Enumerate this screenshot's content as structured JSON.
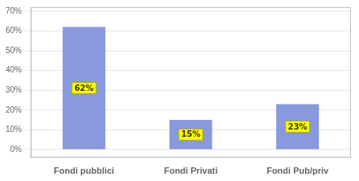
{
  "chart_data": {
    "type": "bar",
    "categories": [
      "Fondi pubblici",
      "Fondi Privati",
      "Fondi Pub/priv"
    ],
    "values": [
      62,
      15,
      23
    ],
    "value_labels": [
      "62%",
      "15%",
      "23%"
    ],
    "data_labels": true,
    "color": "#8899dd",
    "ylim": [
      -4,
      72
    ],
    "yticks": [
      {
        "value": 0,
        "label": "0%"
      },
      {
        "value": 10,
        "label": "10%"
      },
      {
        "value": 20,
        "label": "20%"
      },
      {
        "value": 30,
        "label": "30%"
      },
      {
        "value": 40,
        "label": "40%"
      },
      {
        "value": 50,
        "label": "50%"
      },
      {
        "value": 60,
        "label": "60%"
      },
      {
        "value": 70,
        "label": "70%"
      }
    ],
    "grid": true
  }
}
